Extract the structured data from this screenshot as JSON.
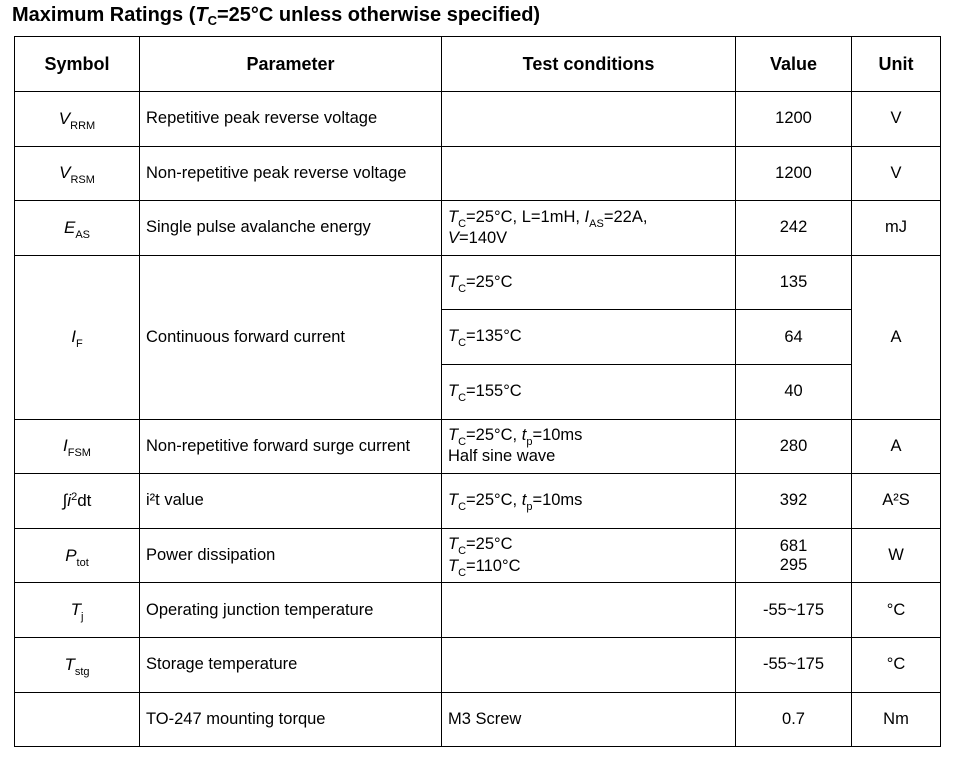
{
  "title": {
    "prefix": "Maximum Ratings (",
    "var": "T",
    "sub": "C",
    "suffix": "=25°C unless otherwise specified)"
  },
  "headers": {
    "symbol": "Symbol",
    "parameter": "Parameter",
    "test_conditions": "Test conditions",
    "value": "Value",
    "unit": "Unit"
  },
  "rows": {
    "vrrm": {
      "sym": "V",
      "sym_sub": "RRM",
      "param": "Repetitive peak reverse voltage",
      "value": "1200",
      "unit": "V"
    },
    "vrsm": {
      "sym": "V",
      "sym_sub": "RSM",
      "param": "Non-repetitive peak reverse voltage",
      "value": "1200",
      "unit": "V"
    },
    "eas": {
      "sym": "E",
      "sym_sub": "AS",
      "param": "Single pulse avalanche energy",
      "cond": {
        "t": "T",
        "t_sub": "C",
        "t_rest": "=25°C, L=1mH, ",
        "i": "I",
        "i_sub": "AS",
        "i_rest": "=22A,",
        "v": "V",
        "v_rest": "=140V"
      },
      "value": "242",
      "unit": "mJ"
    },
    "if": {
      "sym": "I",
      "sym_sub": "F",
      "param": "Continuous forward current",
      "unit": "A",
      "sub_rows": [
        {
          "t": "T",
          "t_sub": "C",
          "t_rest": "=25°C",
          "value": "135"
        },
        {
          "t": "T",
          "t_sub": "C",
          "t_rest": "=135°C",
          "value": "64"
        },
        {
          "t": "T",
          "t_sub": "C",
          "t_rest": "=155°C",
          "value": "40"
        }
      ]
    },
    "ifsm": {
      "sym": "I",
      "sym_sub": "FSM",
      "param": "Non-repetitive forward surge current",
      "cond": {
        "t": "T",
        "t_sub": "C",
        "t_rest": "=25°C, ",
        "tp": "t",
        "tp_sub": "p",
        "tp_rest": "=10ms",
        "line2": "Half sine wave"
      },
      "value": "280",
      "unit": "A"
    },
    "i2t": {
      "sym_integral": "∫",
      "sym_i": "i",
      "sym_sup": "2",
      "sym_dt": "dt",
      "param": "i²t value",
      "cond": {
        "t": "T",
        "t_sub": "C",
        "t_rest": "=25°C, ",
        "tp": "t",
        "tp_sub": "p",
        "tp_rest": "=10ms"
      },
      "value": "392",
      "unit": "A²S"
    },
    "ptot": {
      "sym": "P",
      "sym_sub": "tot",
      "param": "Power dissipation",
      "cond": {
        "line1_t": "T",
        "line1_sub": "C",
        "line1_rest": "=25°C",
        "line2_t": "T",
        "line2_sub": "C",
        "line2_rest": "=110°C"
      },
      "value1": "681",
      "value2": "295",
      "unit": "W"
    },
    "tj": {
      "sym": "T",
      "sym_sub": "j",
      "param": "Operating junction temperature",
      "value": "-55~175",
      "unit": "°C"
    },
    "tstg": {
      "sym": "T",
      "sym_sub": "stg",
      "param": "Storage temperature",
      "value": "-55~175",
      "unit": "°C"
    },
    "torque": {
      "param": "TO-247 mounting torque",
      "cond": "M3 Screw",
      "value": "0.7",
      "unit": "Nm"
    }
  }
}
